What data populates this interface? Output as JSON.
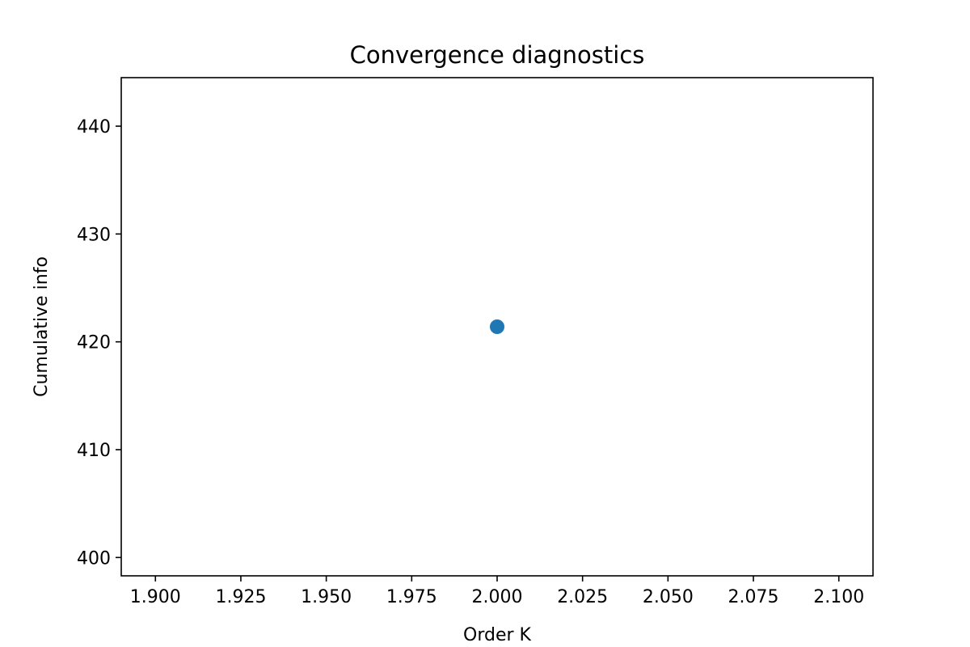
{
  "chart_data": {
    "type": "scatter",
    "title": "Convergence diagnostics",
    "xlabel": "Order K",
    "ylabel": "Cumulative info",
    "xlim": [
      1.89,
      2.11
    ],
    "ylim": [
      398.3,
      444.5
    ],
    "xticks": [
      1.9,
      1.925,
      1.95,
      1.975,
      2.0,
      2.025,
      2.05,
      2.075,
      2.1
    ],
    "xtick_labels": [
      "1.900",
      "1.925",
      "1.950",
      "1.975",
      "2.000",
      "2.025",
      "2.050",
      "2.075",
      "2.100"
    ],
    "yticks": [
      400,
      410,
      420,
      430,
      440
    ],
    "ytick_labels": [
      "400",
      "410",
      "420",
      "430",
      "440"
    ],
    "grid": false,
    "series": [
      {
        "color": "#1f77b4",
        "points": [
          {
            "x": 2.0,
            "y": 421.4
          }
        ]
      }
    ]
  }
}
